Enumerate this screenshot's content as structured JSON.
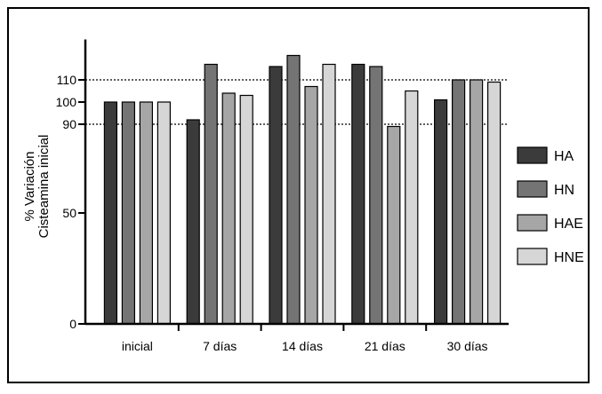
{
  "chart_data": {
    "type": "bar",
    "title": "",
    "xlabel": "",
    "ylabel": [
      "% Variación",
      "Cisteamina inicial"
    ],
    "categories": [
      "inicial",
      "7 días",
      "14 días",
      "21 días",
      "30 días"
    ],
    "y_ticks": [
      "0",
      "50",
      "90",
      "100",
      "110"
    ],
    "y_tick_values": [
      0,
      50,
      90,
      100,
      110
    ],
    "ylim": [
      0,
      125
    ],
    "reference_lines": [
      90,
      110
    ],
    "series": [
      {
        "name": "HA",
        "color": "#3b3b3b",
        "values": [
          100,
          92,
          116,
          117,
          101
        ]
      },
      {
        "name": "HN",
        "color": "#747474",
        "values": [
          100,
          117,
          121,
          116,
          110
        ]
      },
      {
        "name": "HAE",
        "color": "#a6a6a6",
        "values": [
          100,
          104,
          107,
          89,
          110
        ]
      },
      {
        "name": "HNE",
        "color": "#d6d6d6",
        "values": [
          100,
          103,
          117,
          105,
          109
        ]
      }
    ],
    "legend_position": "right",
    "grid": false
  }
}
